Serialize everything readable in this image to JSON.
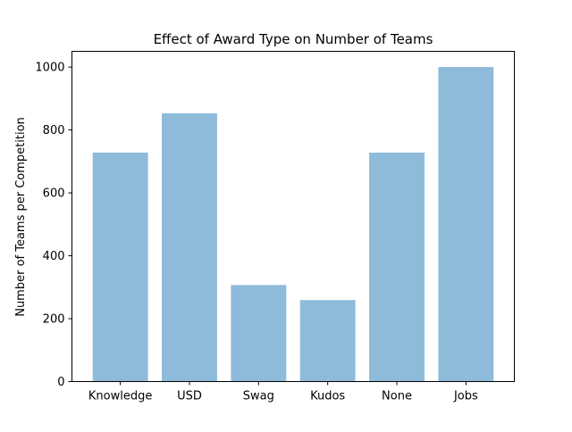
{
  "chart_data": {
    "type": "bar",
    "title": "Effect of Award Type on Number of Teams",
    "xlabel": "",
    "ylabel": "Number of Teams per Competition",
    "categories": [
      "Knowledge",
      "USD",
      "Swag",
      "Kudos",
      "None",
      "Jobs"
    ],
    "values": [
      728,
      853,
      307,
      259,
      728,
      1000
    ],
    "ylim": [
      0,
      1050
    ],
    "yticks": [
      0,
      200,
      400,
      600,
      800,
      1000
    ],
    "bar_color": "#8fbbda",
    "grid": false,
    "legend": "none"
  }
}
